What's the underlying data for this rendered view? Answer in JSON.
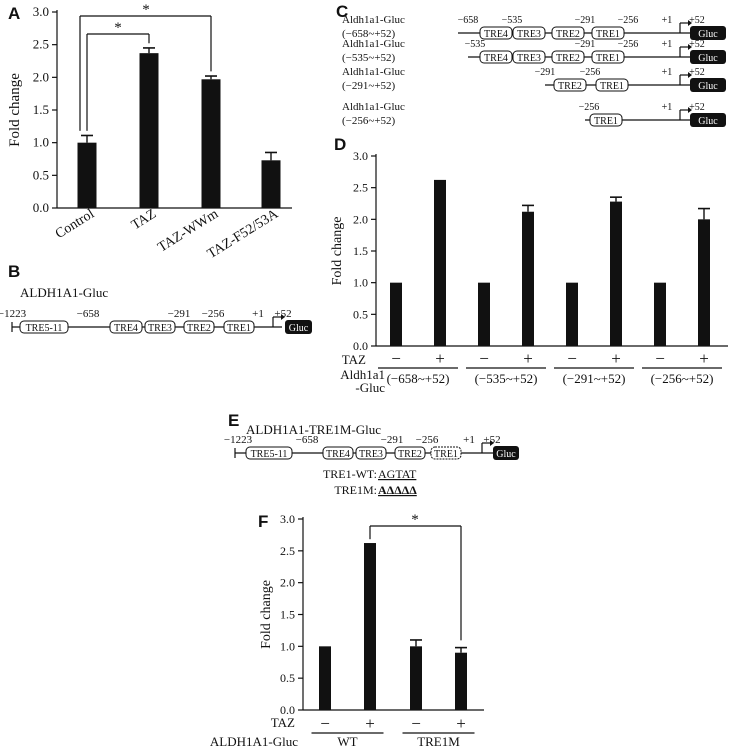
{
  "panels": {
    "A": {
      "letter": "A"
    },
    "B": {
      "letter": "B",
      "title": "ALDH1A1-Gluc",
      "positions": [
        "−1223",
        "−658",
        "−291",
        "−256",
        "+1",
        "+52"
      ],
      "boxes": [
        "TRE5-11",
        "TRE4",
        "TRE3",
        "TRE2",
        "TRE1"
      ],
      "reporter": "Gluc"
    },
    "C": {
      "letter": "C",
      "constructs": [
        {
          "name": "Aldh1a1-Gluc",
          "range": "(−658~+52)",
          "positions": [
            "−658",
            "−535",
            "−291",
            "−256",
            "+1",
            "+52"
          ],
          "boxes": [
            "TRE4",
            "TRE3",
            "TRE2",
            "TRE1"
          ]
        },
        {
          "name": "Aldh1a1-Gluc",
          "range": "(−535~+52)",
          "positions": [
            "−535",
            "−291",
            "−256",
            "+1",
            "+52"
          ],
          "boxes": [
            "TRE4",
            "TRE3",
            "TRE2",
            "TRE1"
          ]
        },
        {
          "name": "Aldh1a1-Gluc",
          "range": "(−291~+52)",
          "positions": [
            "−291",
            "−256",
            "+1",
            "+52"
          ],
          "boxes": [
            "TRE2",
            "TRE1"
          ]
        },
        {
          "name": "Aldh1a1-Gluc",
          "range": "(−256~+52)",
          "positions": [
            "−256",
            "+1",
            "+52"
          ],
          "boxes": [
            "TRE1"
          ]
        }
      ],
      "reporter": "Gluc"
    },
    "D": {
      "letter": "D"
    },
    "E": {
      "letter": "E",
      "title": "ALDH1A1-TRE1M-Gluc",
      "positions": [
        "−1223",
        "−658",
        "−291",
        "−256",
        "+1",
        "+52"
      ],
      "boxes": [
        "TRE5-11",
        "TRE4",
        "TRE3",
        "TRE2",
        "TRE1"
      ],
      "reporter": "Gluc",
      "wt_label": "TRE1-WT: ",
      "wt_seq": "AGTAT",
      "mut_label": "TRE1M: ",
      "mut_seq": "AΔΔΔΔ"
    },
    "F": {
      "letter": "F"
    }
  },
  "chart_data": [
    {
      "panel": "A",
      "type": "bar",
      "categories": [
        "Control",
        "TAZ",
        "TAZ-WWm",
        "TAZ-F52/53A"
      ],
      "values": [
        1.0,
        2.37,
        1.97,
        0.73
      ],
      "errors": [
        0.11,
        0.08,
        0.05,
        0.12
      ],
      "ylabel": "Fold change",
      "ylim": [
        0,
        3.0
      ],
      "yticks": [
        "0.0",
        "0.5",
        "1.0",
        "1.5",
        "2.0",
        "2.5",
        "3.0"
      ],
      "significance": [
        {
          "from": "Control",
          "to": "TAZ",
          "label": "*"
        },
        {
          "from": "Control",
          "to": "TAZ-WWm",
          "label": "*"
        }
      ]
    },
    {
      "panel": "D",
      "type": "bar",
      "categories": [
        "−",
        "+",
        "−",
        "+",
        "−",
        "+",
        "−",
        "+"
      ],
      "values": [
        1.0,
        2.6,
        1.0,
        2.12,
        1.0,
        2.28,
        1.0,
        2.0
      ],
      "errors": [
        0.0,
        0.01,
        0.0,
        0.1,
        0.0,
        0.07,
        0.0,
        0.17
      ],
      "ylabel": "Fold change",
      "ylim": [
        0,
        3.0
      ],
      "yticks": [
        "0.0",
        "0.5",
        "1.0",
        "1.5",
        "2.0",
        "2.5",
        "3.0"
      ],
      "row_labels": [
        "TAZ",
        "Aldh1a1",
        "-Gluc"
      ],
      "groups": [
        "(−658~+52)",
        "(−535~+52)",
        "(−291~+52)",
        "(−256~+52)"
      ]
    },
    {
      "panel": "F",
      "type": "bar",
      "categories": [
        "−",
        "+",
        "−",
        "+"
      ],
      "values": [
        1.0,
        2.6,
        1.0,
        0.9
      ],
      "errors": [
        0.0,
        0.01,
        0.1,
        0.08
      ],
      "ylabel": "Fold change",
      "ylim": [
        0,
        3.0
      ],
      "yticks": [
        "0.0",
        "0.5",
        "1.0",
        "1.5",
        "2.0",
        "2.5",
        "3.0"
      ],
      "row_labels": [
        "TAZ",
        "ALDH1A1-Gluc"
      ],
      "groups": [
        "WT",
        "TRE1M"
      ],
      "significance": [
        {
          "from": 1,
          "to": 3,
          "label": "*"
        }
      ]
    }
  ]
}
